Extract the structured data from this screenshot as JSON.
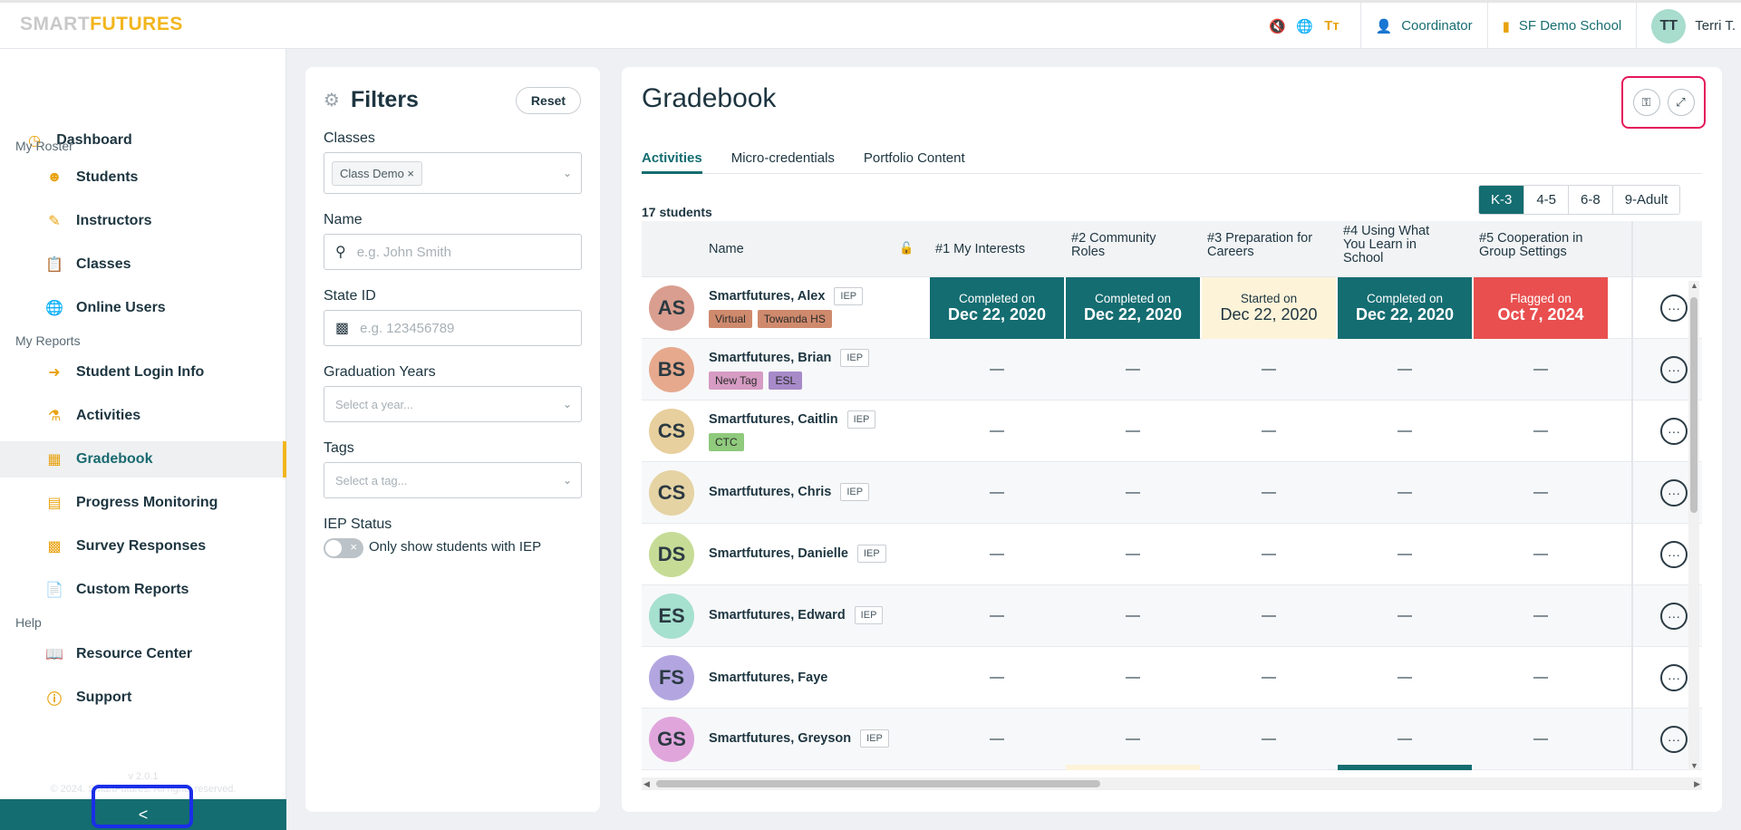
{
  "topbar": {
    "logo_part1": "SMART",
    "logo_part2": "FUTURES",
    "role": "Coordinator",
    "school": "SF Demo School",
    "user_initials": "TT",
    "user_name": "Terri T."
  },
  "sidebar": {
    "dashboard": "Dashboard",
    "section_roster": "My Roster",
    "students": "Students",
    "instructors": "Instructors",
    "classes": "Classes",
    "online_users": "Online Users",
    "section_reports": "My Reports",
    "student_login_info": "Student Login Info",
    "activities": "Activities",
    "gradebook": "Gradebook",
    "progress_monitoring": "Progress Monitoring",
    "survey_responses": "Survey Responses",
    "custom_reports": "Custom Reports",
    "section_help": "Help",
    "resource_center": "Resource Center",
    "support": "Support",
    "version": "v 2.0.1",
    "copyright": "© 2024. SmartFutures. All rights reserved.",
    "collapse": "<"
  },
  "filters": {
    "title": "Filters",
    "reset": "Reset",
    "classes_label": "Classes",
    "class_chip": "Class Demo",
    "name_label": "Name",
    "name_placeholder": "e.g. John Smith",
    "state_id_label": "State ID",
    "state_id_placeholder": "e.g. 123456789",
    "graduation_label": "Graduation Years",
    "graduation_placeholder": "Select a year...",
    "tags_label": "Tags",
    "tags_placeholder": "Select a tag...",
    "iep_label": "IEP Status",
    "iep_toggle": "Only show students with IEP"
  },
  "gradebook": {
    "title": "Gradebook",
    "tabs": [
      "Activities",
      "Micro-credentials",
      "Portfolio Content"
    ],
    "student_count": "17 students",
    "grade_levels": [
      "K-3",
      "4-5",
      "6-8",
      "9-Adult"
    ],
    "columns": {
      "name": "Name",
      "c1": "#1 My Interests",
      "c2a": "#2 Community",
      "c2b": "Roles",
      "c3a": "#3 Preparation for",
      "c3b": "Careers",
      "c4a": "#4 Using What",
      "c4b": "You Learn in",
      "c4c": "School",
      "c5a": "#5 Cooperation in",
      "c5b": "Group Settings"
    },
    "iep": "IEP",
    "empty": "—",
    "students": [
      {
        "initials": "AS",
        "name": "Smartfutures, Alex",
        "tag1": "Virtual",
        "tag2": "Towanda HS"
      },
      {
        "initials": "BS",
        "name": "Smartfutures, Brian",
        "tag1": "New Tag",
        "tag2": "ESL"
      },
      {
        "initials": "CS",
        "name": "Smartfutures, Caitlin",
        "tag1": "CTC"
      },
      {
        "initials": "CS",
        "name": "Smartfutures, Chris"
      },
      {
        "initials": "DS",
        "name": "Smartfutures, Danielle"
      },
      {
        "initials": "ES",
        "name": "Smartfutures, Edward"
      },
      {
        "initials": "FS",
        "name": "Smartfutures, Faye"
      },
      {
        "initials": "GS",
        "name": "Smartfutures, Greyson"
      }
    ],
    "alex_cells": [
      {
        "status": "Completed on",
        "date": "Dec 22, 2020"
      },
      {
        "status": "Completed on",
        "date": "Dec 22, 2020"
      },
      {
        "status": "Started on",
        "date": "Dec 22, 2020"
      },
      {
        "status": "Completed on",
        "date": "Dec 22, 2020"
      },
      {
        "status": "Flagged on",
        "date": "Oct 7, 2024"
      }
    ]
  },
  "colors": {
    "teal": "#146d71",
    "yellow_accent": "#f2b51d",
    "started_bg": "#fdf3d9",
    "flagged_bg": "#e94f4f"
  }
}
